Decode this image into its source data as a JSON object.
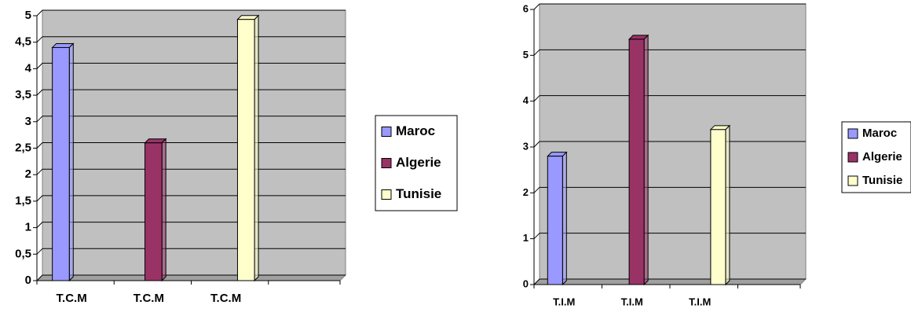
{
  "chart_data": [
    {
      "type": "bar",
      "categories": [
        "T.C.M",
        "T.C.M",
        "T.C.M",
        null
      ],
      "series": [
        {
          "name": "Maroc",
          "color": "#9999ff",
          "values": [
            4.4,
            null,
            null,
            null
          ]
        },
        {
          "name": "Algerie",
          "color": "#993366",
          "values": [
            null,
            2.6,
            null,
            null
          ]
        },
        {
          "name": "Tunisie",
          "color": "#ffffcc",
          "values": [
            null,
            null,
            4.93,
            null
          ]
        }
      ],
      "ylim": [
        0,
        5
      ],
      "yticks": [
        0,
        {
          "value": 0.5,
          "label": "0,5"
        },
        1,
        {
          "value": 1.5,
          "label": "1,5"
        },
        2,
        {
          "value": 2.5,
          "label": "2,5"
        },
        3,
        {
          "value": 3.5,
          "label": "3,5"
        },
        4,
        {
          "value": 4.5,
          "label": "4,5"
        },
        5
      ],
      "grid": true,
      "legend": "right"
    },
    {
      "type": "bar",
      "categories": [
        "T.I.M",
        "T.I.M",
        "T.I.M",
        null
      ],
      "series": [
        {
          "name": "Maroc",
          "color": "#9999ff",
          "values": [
            2.8,
            null,
            null,
            null
          ]
        },
        {
          "name": "Algerie",
          "color": "#993366",
          "values": [
            null,
            5.35,
            null,
            null
          ]
        },
        {
          "name": "Tunisie",
          "color": "#ffffcc",
          "values": [
            null,
            null,
            3.38,
            null
          ]
        }
      ],
      "ylim": [
        0,
        6
      ],
      "yticks": [
        0,
        1,
        2,
        3,
        4,
        5,
        6
      ],
      "grid": true,
      "legend": "right"
    }
  ]
}
